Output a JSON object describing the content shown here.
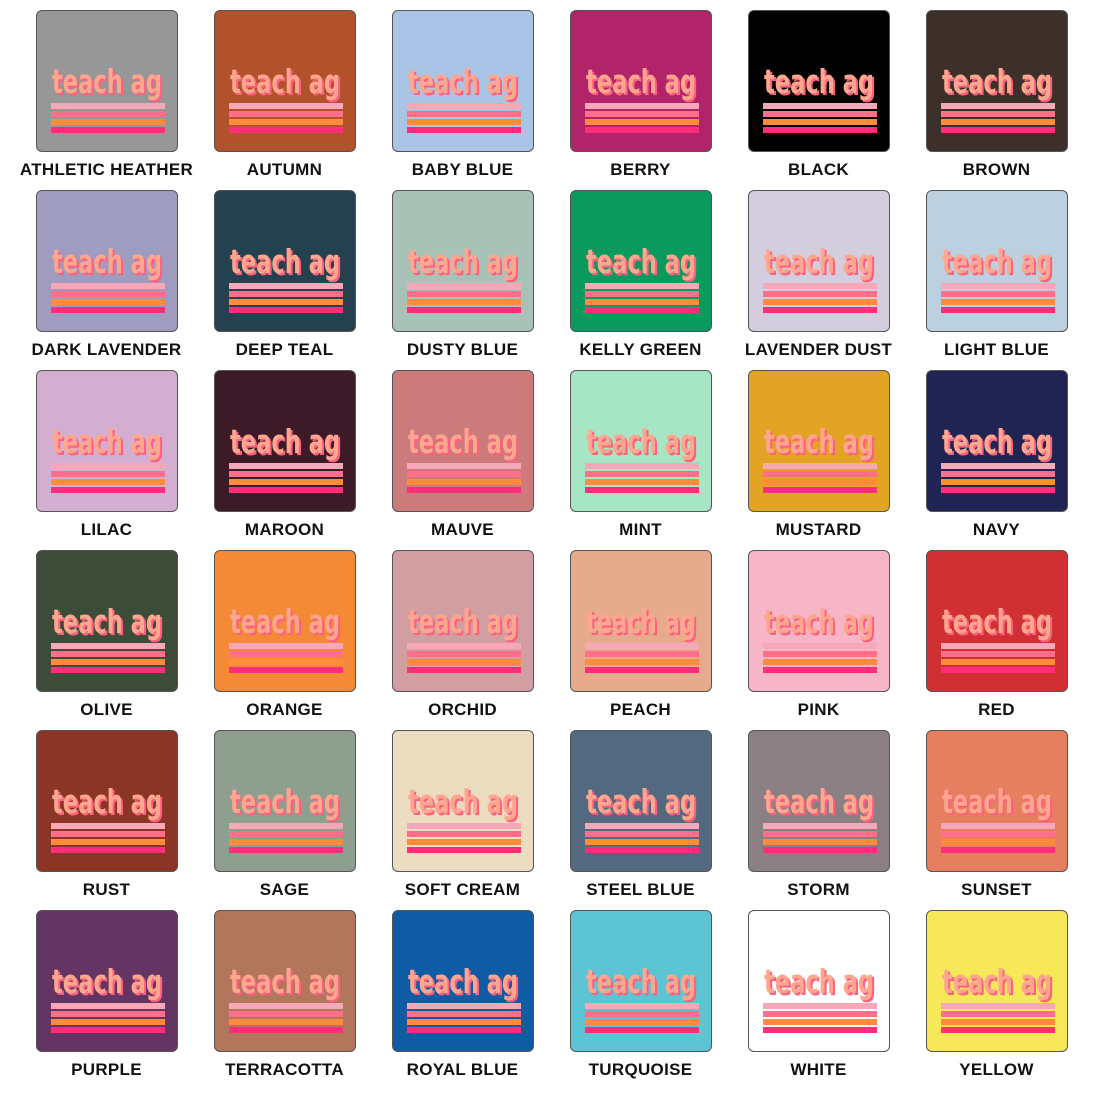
{
  "design_text": "teach ag",
  "design_colors": {
    "text_fill": "#ffa68f",
    "text_shadow": "#ff5f7e",
    "stripe_1": "#f7a8b8",
    "stripe_2": "#ff6f8a",
    "stripe_3": "#ff8c3a",
    "stripe_4": "#ff2d7a"
  },
  "colors": [
    {
      "label": "ATHLETIC HEATHER",
      "hex": "#979797"
    },
    {
      "label": "AUTUMN",
      "hex": "#b2522d"
    },
    {
      "label": "BABY BLUE",
      "hex": "#a9c4e4"
    },
    {
      "label": "BERRY",
      "hex": "#b1246a"
    },
    {
      "label": "BLACK",
      "hex": "#000000"
    },
    {
      "label": "BROWN",
      "hex": "#3d2f2a"
    },
    {
      "label": "DARK LAVENDER",
      "hex": "#a09cc0"
    },
    {
      "label": "DEEP TEAL",
      "hex": "#23414e"
    },
    {
      "label": "DUSTY BLUE",
      "hex": "#a9c2b8"
    },
    {
      "label": "KELLY GREEN",
      "hex": "#0b9a5e"
    },
    {
      "label": "LAVENDER DUST",
      "hex": "#d3cddd"
    },
    {
      "label": "LIGHT BLUE",
      "hex": "#bcd0e0"
    },
    {
      "label": "LILAC",
      "hex": "#d4aed0"
    },
    {
      "label": "MAROON",
      "hex": "#3d1a27"
    },
    {
      "label": "MAUVE",
      "hex": "#cb7b7b"
    },
    {
      "label": "MINT",
      "hex": "#a6e6c4"
    },
    {
      "label": "MUSTARD",
      "hex": "#e3a324"
    },
    {
      "label": "NAVY",
      "hex": "#1f2452"
    },
    {
      "label": "OLIVE",
      "hex": "#3c4c39"
    },
    {
      "label": "ORANGE",
      "hex": "#f48a35"
    },
    {
      "label": "ORCHID",
      "hex": "#d19ea1"
    },
    {
      "label": "PEACH",
      "hex": "#e6ab8c"
    },
    {
      "label": "PINK",
      "hex": "#f7b5c8"
    },
    {
      "label": "RED",
      "hex": "#d03034"
    },
    {
      "label": "RUST",
      "hex": "#8b3526"
    },
    {
      "label": "SAGE",
      "hex": "#8f9f8f"
    },
    {
      "label": "SOFT CREAM",
      "hex": "#ecdcc0"
    },
    {
      "label": "STEEL BLUE",
      "hex": "#53697f"
    },
    {
      "label": "STORM",
      "hex": "#8a8083"
    },
    {
      "label": "SUNSET",
      "hex": "#e57f60"
    },
    {
      "label": "PURPLE",
      "hex": "#643462"
    },
    {
      "label": "TERRACOTTA",
      "hex": "#b2765c"
    },
    {
      "label": "ROYAL BLUE",
      "hex": "#0f5ba4"
    },
    {
      "label": "TURQUOISE",
      "hex": "#5cc4d2"
    },
    {
      "label": "WHITE",
      "hex": "#ffffff"
    },
    {
      "label": "YELLOW",
      "hex": "#f7e85a"
    }
  ]
}
